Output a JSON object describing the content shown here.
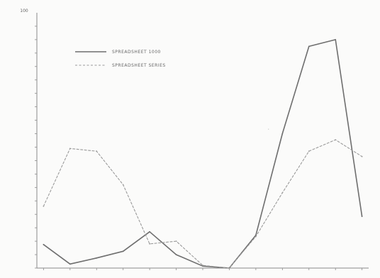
{
  "chart_data": {
    "type": "line",
    "title": "",
    "xlabel": "",
    "ylabel": "",
    "ylim": [
      0,
      1900
    ],
    "yticks": [
      0,
      100,
      200,
      300,
      400,
      500,
      600,
      700,
      800,
      900,
      1000,
      1100,
      1200,
      1300,
      1400,
      1500,
      1600,
      1700,
      1800
    ],
    "y_top_label": "100",
    "x": [
      1,
      2,
      3,
      4,
      5,
      6,
      7,
      8,
      9,
      10,
      11,
      12,
      13
    ],
    "series": [
      {
        "style": "solid",
        "color": "#6e6e6e",
        "values": [
          175,
          30,
          75,
          125,
          270,
          100,
          15,
          0,
          245,
          1000,
          1650,
          1700,
          385
        ]
      },
      {
        "style": "dashed",
        "color": "#9a9a9a",
        "values": [
          460,
          890,
          870,
          620,
          180,
          200,
          20,
          0,
          235,
          560,
          870,
          955,
          830
        ]
      }
    ],
    "legend": [
      {
        "style": "solid",
        "text": "SPREADSHEET 1000"
      },
      {
        "style": "dashed",
        "text": "SPREADSHEET SERIES"
      }
    ],
    "grid": false,
    "legend_position": "top-left",
    "annotations": [
      {
        "text": "·"
      }
    ]
  }
}
